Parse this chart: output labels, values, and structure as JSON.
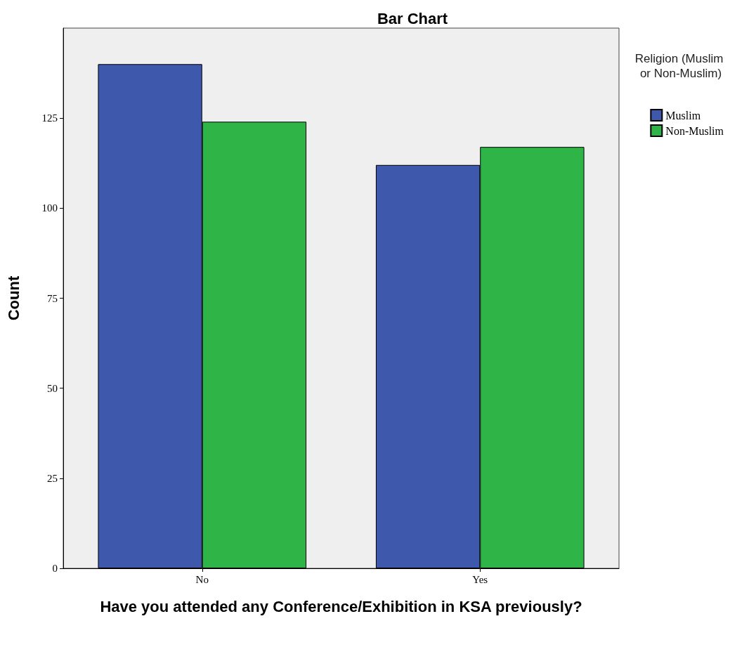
{
  "chart_data": {
    "type": "bar",
    "title": "Bar Chart",
    "xlabel": "Have you attended any Conference/Exhibition in KSA previously?",
    "ylabel": "Count",
    "legend_title": "Religion (Muslim or Non-Muslim)",
    "categories": [
      "No",
      "Yes"
    ],
    "series": [
      {
        "name": "Muslim",
        "color": "#3e58ab",
        "values": [
          140,
          112
        ]
      },
      {
        "name": "Non-Muslim",
        "color": "#2fb547",
        "values": [
          124,
          117
        ]
      }
    ],
    "ylim": [
      0,
      150
    ],
    "yticks": [
      0,
      25,
      50,
      75,
      100,
      125
    ],
    "grid": false,
    "legend": "top right"
  }
}
